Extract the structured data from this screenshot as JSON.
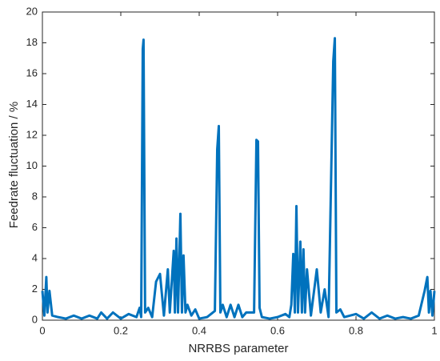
{
  "chart_data": {
    "type": "line",
    "xlabel": "NRRBS parameter",
    "ylabel": "Feedrate fluctuation / %",
    "x": [
      0,
      0.005,
      0.01,
      0.013,
      0.018,
      0.025,
      0.04,
      0.06,
      0.08,
      0.1,
      0.12,
      0.14,
      0.15,
      0.165,
      0.18,
      0.2,
      0.22,
      0.24,
      0.248,
      0.252,
      0.256,
      0.258,
      0.262,
      0.27,
      0.28,
      0.29,
      0.3,
      0.31,
      0.32,
      0.325,
      0.335,
      0.338,
      0.342,
      0.346,
      0.352,
      0.356,
      0.36,
      0.365,
      0.37,
      0.38,
      0.39,
      0.4,
      0.42,
      0.44,
      0.446,
      0.45,
      0.454,
      0.46,
      0.47,
      0.48,
      0.49,
      0.5,
      0.51,
      0.52,
      0.54,
      0.546,
      0.55,
      0.554,
      0.56,
      0.58,
      0.6,
      0.62,
      0.63,
      0.635,
      0.64,
      0.644,
      0.648,
      0.652,
      0.658,
      0.662,
      0.666,
      0.67,
      0.675,
      0.685,
      0.7,
      0.71,
      0.72,
      0.73,
      0.742,
      0.746,
      0.75,
      0.76,
      0.77,
      0.8,
      0.82,
      0.84,
      0.86,
      0.88,
      0.9,
      0.92,
      0.94,
      0.96,
      0.975,
      0.982,
      0.986,
      0.99,
      0.995,
      1
    ],
    "series": [
      {
        "name": "Feedrate fluctuation",
        "color": "#0072BD",
        "values": [
          1.9,
          0.3,
          2.8,
          0.5,
          1.9,
          0.3,
          0.2,
          0.1,
          0.3,
          0.1,
          0.3,
          0.1,
          0.5,
          0.1,
          0.5,
          0.1,
          0.4,
          0.2,
          0.8,
          0.2,
          17.6,
          18.2,
          0.5,
          0.8,
          0.2,
          2.5,
          3.0,
          0.3,
          3.3,
          0.5,
          4.5,
          0.5,
          5.3,
          0.5,
          6.9,
          0.5,
          4.2,
          0.5,
          1.0,
          0.3,
          0.7,
          0.1,
          0.2,
          0.6,
          11.1,
          12.6,
          0.5,
          1.0,
          0.2,
          1.0,
          0.2,
          1.0,
          0.2,
          0.5,
          0.5,
          11.7,
          11.6,
          0.8,
          0.2,
          0.1,
          0.2,
          0.4,
          0.2,
          1.0,
          4.3,
          0.5,
          7.4,
          0.5,
          5.1,
          0.5,
          4.6,
          0.5,
          3.3,
          0.3,
          3.3,
          0.5,
          2.0,
          0.2,
          16.8,
          18.3,
          0.5,
          0.7,
          0.2,
          0.4,
          0.1,
          0.5,
          0.1,
          0.3,
          0.1,
          0.2,
          0.1,
          0.3,
          1.9,
          2.8,
          0.5,
          1.9,
          0.3,
          1.9
        ]
      }
    ],
    "xlim": [
      0,
      1
    ],
    "xticks": [
      0,
      0.2,
      0.4,
      0.6,
      0.8,
      1
    ],
    "ylim": [
      0,
      20
    ],
    "yticks": [
      0,
      2,
      4,
      6,
      8,
      10,
      12,
      14,
      16,
      18,
      20
    ]
  }
}
